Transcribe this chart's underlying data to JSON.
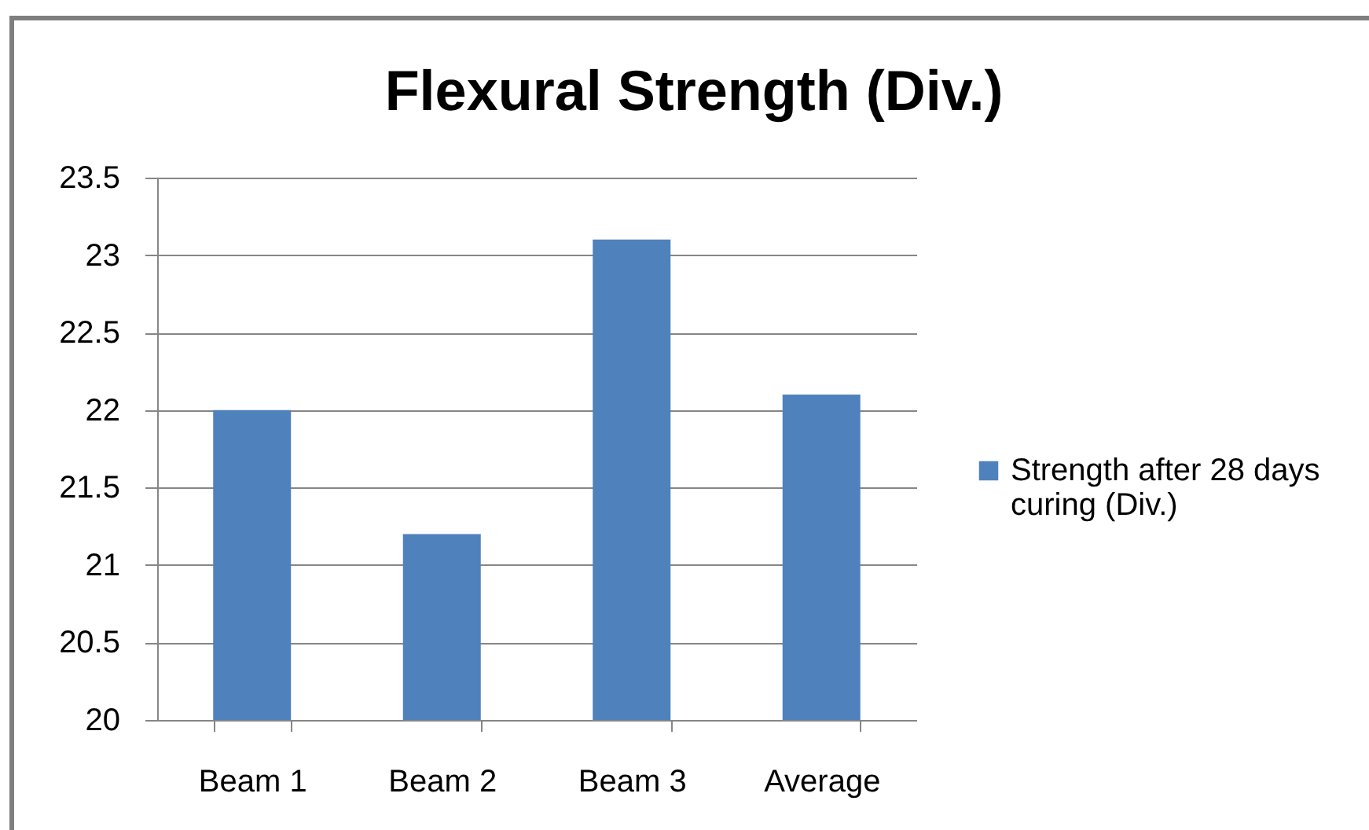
{
  "chart_data": {
    "type": "bar",
    "title": "Flexural Strength (Div.)",
    "categories": [
      "Beam 1",
      "Beam 2",
      "Beam 3",
      "Average"
    ],
    "series": [
      {
        "name": "Strength after 28 days curing (Div.)",
        "color": "#4f81bd",
        "values": [
          22.0,
          21.2,
          23.1,
          22.1
        ]
      }
    ],
    "ylim": [
      20,
      23.5
    ],
    "yticks": [
      20,
      20.5,
      21,
      21.5,
      22,
      22.5,
      23,
      23.5
    ],
    "grid": "y",
    "legend": "right"
  }
}
